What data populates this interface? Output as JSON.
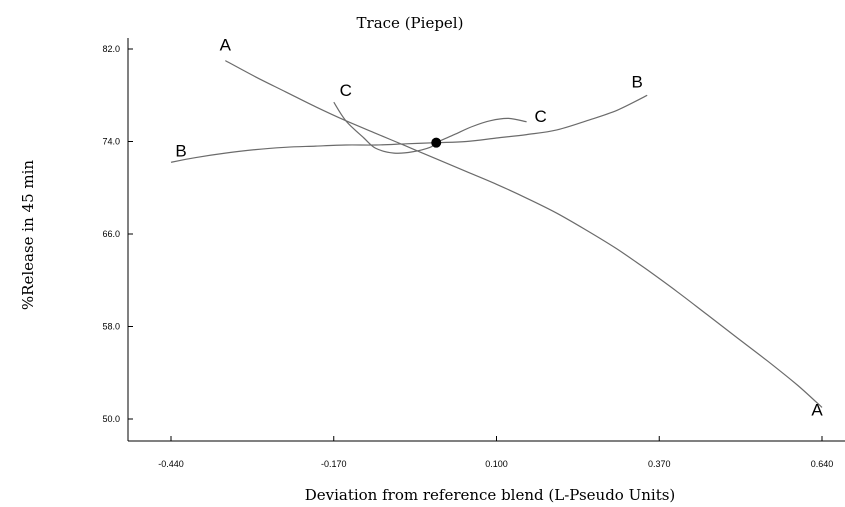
{
  "chart_data": {
    "type": "line",
    "title": "Trace (Piepel)",
    "xlabel": "Deviation from reference blend (L-Pseudo Units)",
    "ylabel": "%Release in 45 min",
    "xlim": [
      -0.44,
      0.64
    ],
    "ylim": [
      50.0,
      82.0
    ],
    "xticks": [
      "-0.440",
      "-0.170",
      "0.100",
      "0.370",
      "0.640"
    ],
    "yticks": [
      "50.0",
      "58.0",
      "66.0",
      "74.0",
      "82.0"
    ],
    "grid": false,
    "series": [
      {
        "name": "A",
        "x": [
          -0.35,
          -0.3,
          -0.25,
          -0.2,
          -0.15,
          -0.1,
          -0.05,
          0.0,
          0.05,
          0.1,
          0.15,
          0.2,
          0.25,
          0.3,
          0.35,
          0.4,
          0.45,
          0.5,
          0.55,
          0.6,
          0.64
        ],
        "y": [
          81.0,
          79.6,
          78.3,
          77.0,
          75.8,
          74.7,
          73.6,
          72.5,
          71.4,
          70.3,
          69.1,
          67.8,
          66.3,
          64.7,
          62.9,
          61.0,
          59.0,
          57.0,
          55.0,
          52.9,
          51.0
        ]
      },
      {
        "name": "B",
        "x": [
          -0.44,
          -0.4,
          -0.35,
          -0.3,
          -0.25,
          -0.2,
          -0.15,
          -0.1,
          -0.05,
          0.0,
          0.05,
          0.1,
          0.15,
          0.2,
          0.25,
          0.3,
          0.35
        ],
        "y": [
          72.2,
          72.6,
          73.0,
          73.3,
          73.5,
          73.6,
          73.7,
          73.7,
          73.8,
          73.9,
          74.0,
          74.3,
          74.6,
          75.0,
          75.8,
          76.7,
          78.0
        ]
      },
      {
        "name": "C",
        "x": [
          -0.17,
          -0.15,
          -0.12,
          -0.1,
          -0.07,
          -0.04,
          -0.01,
          0.0,
          0.03,
          0.06,
          0.09,
          0.12,
          0.15
        ],
        "y": [
          77.4,
          75.8,
          74.3,
          73.4,
          73.0,
          73.1,
          73.5,
          73.9,
          74.6,
          75.3,
          75.8,
          76.0,
          75.7
        ]
      }
    ],
    "reference_point": {
      "x": 0.0,
      "y": 73.9
    }
  }
}
